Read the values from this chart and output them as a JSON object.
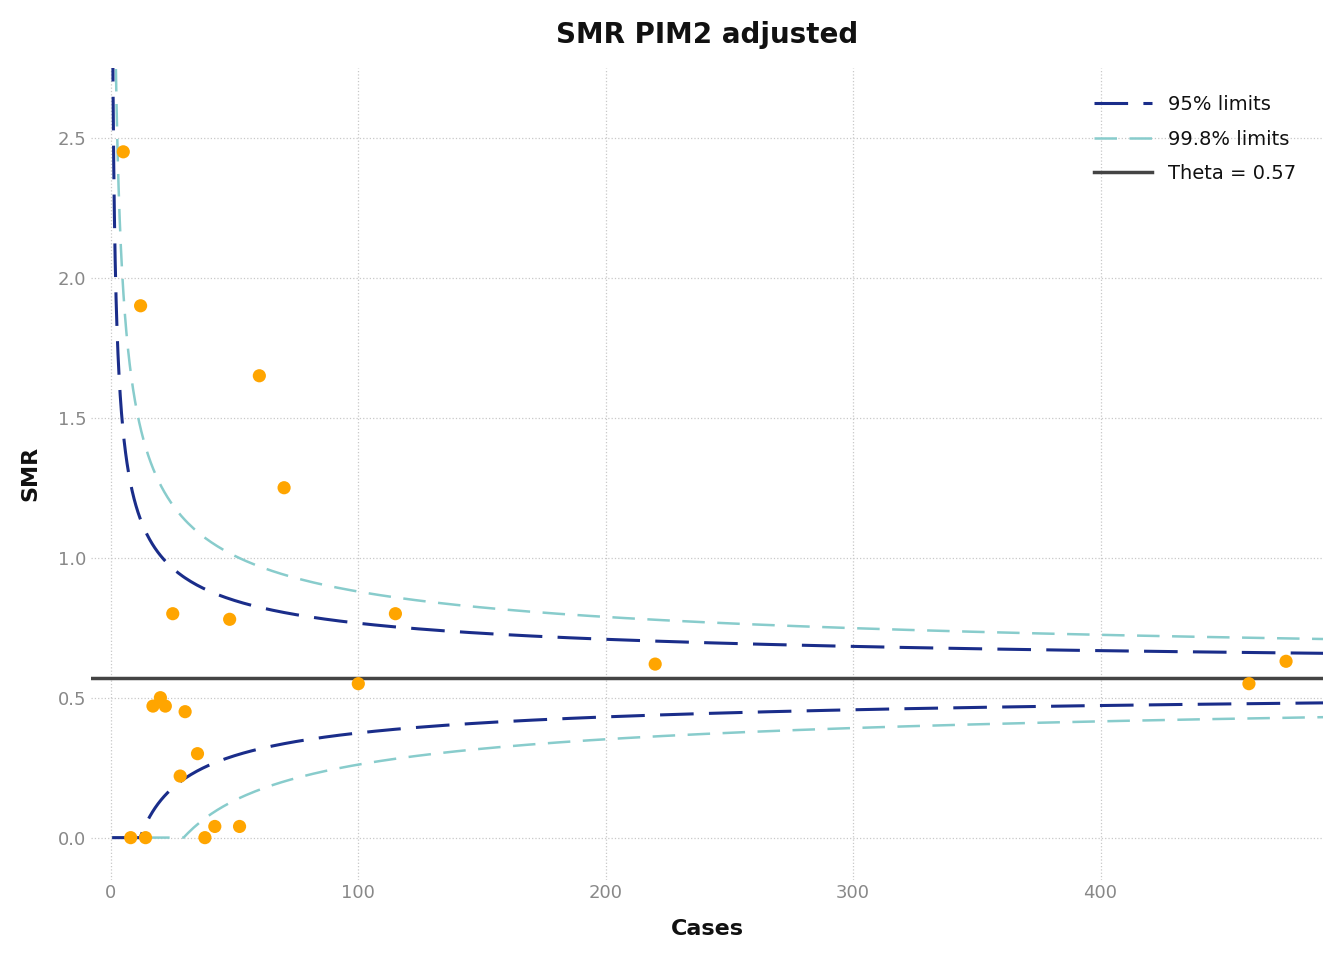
{
  "title": "SMR PIM2 adjusted",
  "xlabel": "Cases",
  "ylabel": "SMR",
  "theta": 0.57,
  "theta_label": "Theta = 0.57",
  "ylim": [
    -0.15,
    2.75
  ],
  "xlim": [
    -8,
    490
  ],
  "dot_color": "#FFA500",
  "line_95_color": "#1a2d8a",
  "line_998_color": "#88cccc",
  "theta_line_color": "#444444",
  "bg_color": "#ffffff",
  "grid_color": "#c8c8c8",
  "scatter_x": [
    5,
    8,
    12,
    14,
    17,
    20,
    22,
    25,
    28,
    30,
    35,
    38,
    42,
    48,
    52,
    60,
    70,
    100,
    115,
    220,
    460,
    475
  ],
  "scatter_y": [
    2.45,
    0.0,
    1.9,
    0.0,
    0.47,
    0.5,
    0.47,
    0.8,
    0.22,
    0.45,
    0.3,
    0.0,
    0.04,
    0.78,
    0.04,
    1.65,
    1.25,
    0.55,
    0.8,
    0.62,
    0.55,
    0.63
  ],
  "title_fontsize": 20,
  "label_fontsize": 16,
  "tick_fontsize": 13,
  "legend_fontsize": 14,
  "xticks": [
    0,
    100,
    200,
    300,
    400
  ],
  "yticks": [
    0.0,
    0.5,
    1.0,
    1.5,
    2.0,
    2.5
  ]
}
